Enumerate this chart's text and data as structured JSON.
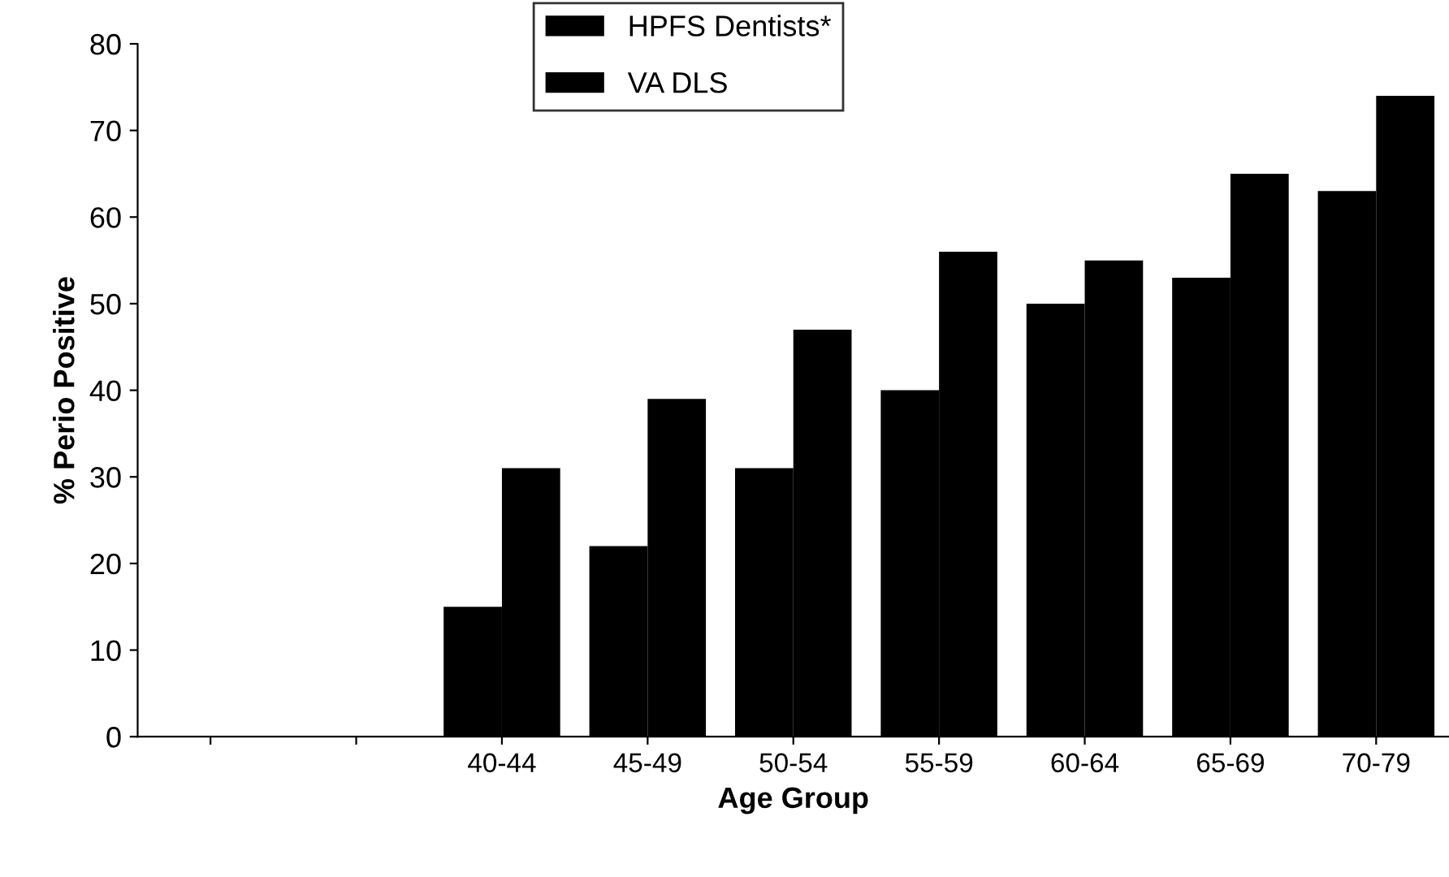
{
  "chart_data": {
    "type": "bar",
    "xlabel": "Age Group",
    "ylabel": "% Perio Positive",
    "categories": [
      null,
      null,
      "40-44",
      "45-49",
      "50-54",
      "55-59",
      "60-64",
      "65-69",
      "70-79"
    ],
    "series": [
      {
        "name": "HPFS Dentists*",
        "color": "#000000",
        "values": [
          null,
          null,
          15,
          22,
          31,
          40,
          50,
          53,
          63
        ]
      },
      {
        "name": "VA DLS",
        "color": "#000000",
        "values": [
          null,
          null,
          31,
          39,
          47,
          56,
          55,
          65,
          74
        ]
      }
    ],
    "ylim": [
      0,
      80
    ],
    "yticks": [
      0,
      10,
      20,
      30,
      40,
      50,
      60,
      70,
      80
    ],
    "grid": false,
    "legend": "top"
  }
}
